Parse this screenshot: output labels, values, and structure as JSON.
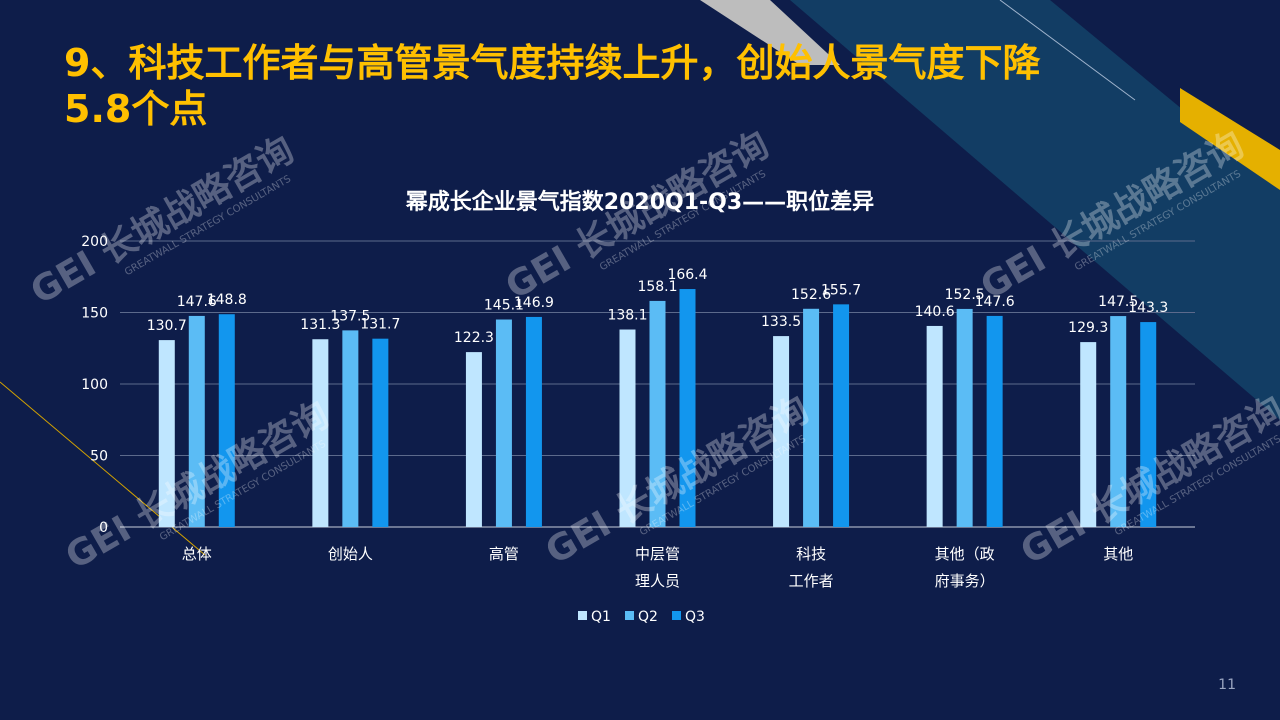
{
  "slide": {
    "title": "9、科技工作者与高管景气度持续上升，创始人景气度下降5.8个点",
    "page_number": "11"
  },
  "watermark": {
    "brand": "GEI 长城战略咨询",
    "sub": "GREATWALL STRATEGY CONSULTANTS"
  },
  "colors": {
    "background": "#0e1d4a",
    "title": "#ffc000",
    "accent_gold": "#e5b000",
    "accent_teal": "#123d64",
    "accent_gray": "#bdbdbd",
    "q1": "#bfe6ff",
    "q2": "#5bbcf5",
    "q3": "#1296ee"
  },
  "chart_data": {
    "type": "bar",
    "title": "幂成长企业景气指数2020Q1-Q3——职位差异",
    "categories": [
      "总体",
      "创始人",
      "高管",
      "中层管理人员",
      "科技工作者",
      "其他（政府事务）",
      "其他"
    ],
    "category_lines": [
      [
        "总体"
      ],
      [
        "创始人"
      ],
      [
        "高管"
      ],
      [
        "中层管",
        "理人员"
      ],
      [
        "科技",
        "工作者"
      ],
      [
        "其他（政",
        "府事务）"
      ],
      [
        "其他"
      ]
    ],
    "series": [
      {
        "name": "Q1",
        "values": [
          130.7,
          131.3,
          122.3,
          138.1,
          133.5,
          140.6,
          129.3
        ]
      },
      {
        "name": "Q2",
        "values": [
          147.6,
          137.5,
          145.1,
          158.1,
          152.6,
          152.5,
          147.5
        ]
      },
      {
        "name": "Q3",
        "values": [
          148.8,
          131.7,
          146.9,
          166.4,
          155.7,
          147.6,
          143.3
        ]
      }
    ],
    "ylim": [
      0,
      200
    ],
    "yticks": [
      0,
      50,
      100,
      150,
      200
    ],
    "grid": true,
    "legend": "bottom-center"
  }
}
